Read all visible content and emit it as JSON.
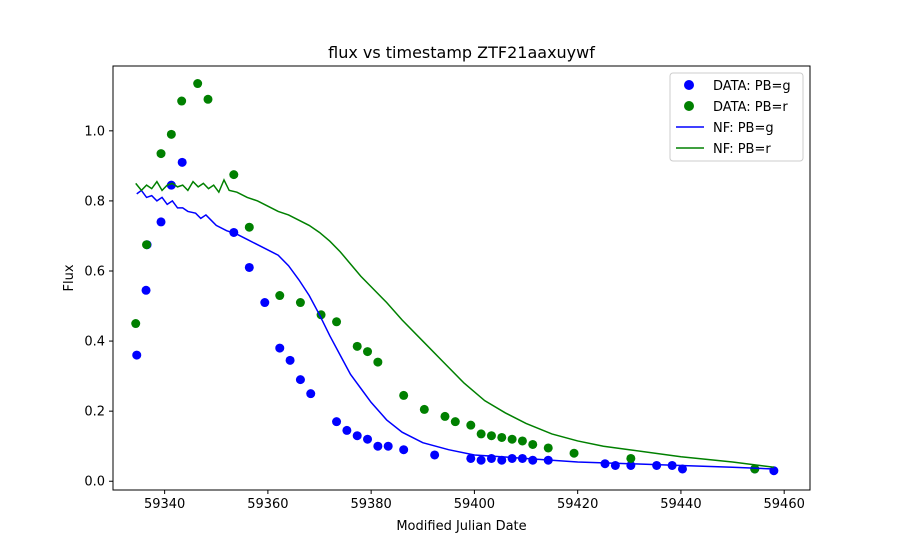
{
  "chart_data": {
    "type": "scatter",
    "title": "flux vs timestamp ZTF21aaxuywf",
    "xlabel": "Modified Julian Date",
    "ylabel": "Flux",
    "xlim": [
      59330,
      59465
    ],
    "ylim": [
      -0.025,
      1.185
    ],
    "xticks": [
      59340,
      59360,
      59380,
      59400,
      59420,
      59440,
      59460
    ],
    "yticks": [
      0.0,
      0.2,
      0.4,
      0.6,
      0.8,
      1.0
    ],
    "xtick_labels": [
      "59340",
      "59360",
      "59380",
      "59400",
      "59420",
      "59440",
      "59460"
    ],
    "ytick_labels": [
      "0.0",
      "0.2",
      "0.4",
      "0.6",
      "0.8",
      "1.0"
    ],
    "grid": false,
    "legend_position": "top-right",
    "series": [
      {
        "name": "DATA: PB=g",
        "kind": "scatter",
        "color": "#0000ff",
        "points": [
          [
            59334.6,
            0.36
          ],
          [
            59336.4,
            0.545
          ],
          [
            59336.6,
            0.675
          ],
          [
            59339.3,
            0.74
          ],
          [
            59341.3,
            0.845
          ],
          [
            59343.4,
            0.91
          ],
          [
            59353.4,
            0.71
          ],
          [
            59356.4,
            0.61
          ],
          [
            59359.4,
            0.51
          ],
          [
            59362.3,
            0.38
          ],
          [
            59364.3,
            0.345
          ],
          [
            59366.3,
            0.29
          ],
          [
            59368.3,
            0.25
          ],
          [
            59373.3,
            0.17
          ],
          [
            59375.3,
            0.145
          ],
          [
            59377.3,
            0.13
          ],
          [
            59379.3,
            0.12
          ],
          [
            59381.3,
            0.1
          ],
          [
            59383.3,
            0.1
          ],
          [
            59386.3,
            0.09
          ],
          [
            59392.3,
            0.075
          ],
          [
            59399.3,
            0.065
          ],
          [
            59401.3,
            0.06
          ],
          [
            59403.3,
            0.065
          ],
          [
            59405.3,
            0.06
          ],
          [
            59407.3,
            0.065
          ],
          [
            59409.3,
            0.065
          ],
          [
            59411.3,
            0.06
          ],
          [
            59414.3,
            0.06
          ],
          [
            59425.3,
            0.05
          ],
          [
            59427.3,
            0.045
          ],
          [
            59430.3,
            0.045
          ],
          [
            59435.3,
            0.045
          ],
          [
            59438.3,
            0.045
          ],
          [
            59440.3,
            0.035
          ],
          [
            59454.3,
            0.035
          ],
          [
            59458.0,
            0.03
          ]
        ]
      },
      {
        "name": "DATA: PB=r",
        "kind": "scatter",
        "color": "#008000",
        "points": [
          [
            59334.4,
            0.45
          ],
          [
            59336.5,
            0.675
          ],
          [
            59339.3,
            0.935
          ],
          [
            59341.3,
            0.99
          ],
          [
            59343.3,
            1.085
          ],
          [
            59346.4,
            1.135
          ],
          [
            59348.4,
            1.09
          ],
          [
            59353.4,
            0.875
          ],
          [
            59356.4,
            0.725
          ],
          [
            59362.3,
            0.53
          ],
          [
            59366.3,
            0.51
          ],
          [
            59370.3,
            0.475
          ],
          [
            59373.3,
            0.455
          ],
          [
            59377.3,
            0.385
          ],
          [
            59379.3,
            0.37
          ],
          [
            59381.3,
            0.34
          ],
          [
            59386.3,
            0.245
          ],
          [
            59390.3,
            0.205
          ],
          [
            59394.3,
            0.185
          ],
          [
            59396.3,
            0.17
          ],
          [
            59399.3,
            0.16
          ],
          [
            59401.3,
            0.135
          ],
          [
            59403.3,
            0.13
          ],
          [
            59405.3,
            0.125
          ],
          [
            59407.3,
            0.12
          ],
          [
            59409.3,
            0.115
          ],
          [
            59411.3,
            0.105
          ],
          [
            59414.3,
            0.095
          ],
          [
            59419.3,
            0.08
          ],
          [
            59430.3,
            0.065
          ],
          [
            59454.3,
            0.035
          ]
        ]
      },
      {
        "name": "NF: PB=g",
        "kind": "line",
        "color": "#0000ff",
        "points": [
          [
            59334.6,
            0.82
          ],
          [
            59335.5,
            0.83
          ],
          [
            59336.5,
            0.81
          ],
          [
            59337.5,
            0.815
          ],
          [
            59338.5,
            0.8
          ],
          [
            59339.5,
            0.81
          ],
          [
            59340.5,
            0.79
          ],
          [
            59341.5,
            0.8
          ],
          [
            59342.5,
            0.78
          ],
          [
            59343.5,
            0.78
          ],
          [
            59344.5,
            0.77
          ],
          [
            59346,
            0.765
          ],
          [
            59347,
            0.75
          ],
          [
            59348,
            0.76
          ],
          [
            59349,
            0.745
          ],
          [
            59350,
            0.73
          ],
          [
            59352,
            0.715
          ],
          [
            59354,
            0.705
          ],
          [
            59356,
            0.69
          ],
          [
            59358,
            0.675
          ],
          [
            59360,
            0.66
          ],
          [
            59362,
            0.645
          ],
          [
            59364,
            0.615
          ],
          [
            59366,
            0.575
          ],
          [
            59368,
            0.53
          ],
          [
            59370,
            0.475
          ],
          [
            59372,
            0.415
          ],
          [
            59374,
            0.36
          ],
          [
            59376,
            0.305
          ],
          [
            59378,
            0.265
          ],
          [
            59380,
            0.225
          ],
          [
            59383,
            0.175
          ],
          [
            59386,
            0.14
          ],
          [
            59390,
            0.11
          ],
          [
            59395,
            0.09
          ],
          [
            59400,
            0.075
          ],
          [
            59410,
            0.065
          ],
          [
            59420,
            0.055
          ],
          [
            59430,
            0.05
          ],
          [
            59440,
            0.045
          ],
          [
            59450,
            0.04
          ],
          [
            59458,
            0.035
          ]
        ]
      },
      {
        "name": "NF: PB=r",
        "kind": "line",
        "color": "#008000",
        "points": [
          [
            59334.4,
            0.85
          ],
          [
            59335.5,
            0.83
          ],
          [
            59336.5,
            0.845
          ],
          [
            59337.5,
            0.835
          ],
          [
            59338.5,
            0.855
          ],
          [
            59339.5,
            0.83
          ],
          [
            59340.5,
            0.845
          ],
          [
            59341.5,
            0.85
          ],
          [
            59342.5,
            0.84
          ],
          [
            59343.5,
            0.845
          ],
          [
            59344.5,
            0.83
          ],
          [
            59345.5,
            0.855
          ],
          [
            59346.5,
            0.84
          ],
          [
            59347.5,
            0.85
          ],
          [
            59348.5,
            0.835
          ],
          [
            59349.5,
            0.845
          ],
          [
            59350.5,
            0.825
          ],
          [
            59351.5,
            0.86
          ],
          [
            59352.5,
            0.83
          ],
          [
            59354,
            0.825
          ],
          [
            59356,
            0.81
          ],
          [
            59358,
            0.8
          ],
          [
            59360,
            0.785
          ],
          [
            59362,
            0.77
          ],
          [
            59364,
            0.76
          ],
          [
            59366,
            0.745
          ],
          [
            59368,
            0.73
          ],
          [
            59370,
            0.71
          ],
          [
            59372,
            0.685
          ],
          [
            59374,
            0.655
          ],
          [
            59376,
            0.62
          ],
          [
            59378,
            0.585
          ],
          [
            59380,
            0.555
          ],
          [
            59383,
            0.51
          ],
          [
            59386,
            0.46
          ],
          [
            59390,
            0.4
          ],
          [
            59394,
            0.34
          ],
          [
            59398,
            0.28
          ],
          [
            59402,
            0.23
          ],
          [
            59406,
            0.195
          ],
          [
            59410,
            0.165
          ],
          [
            59415,
            0.135
          ],
          [
            59420,
            0.115
          ],
          [
            59425,
            0.1
          ],
          [
            59430,
            0.09
          ],
          [
            59440,
            0.07
          ],
          [
            59450,
            0.055
          ],
          [
            59458,
            0.04
          ]
        ]
      }
    ]
  }
}
